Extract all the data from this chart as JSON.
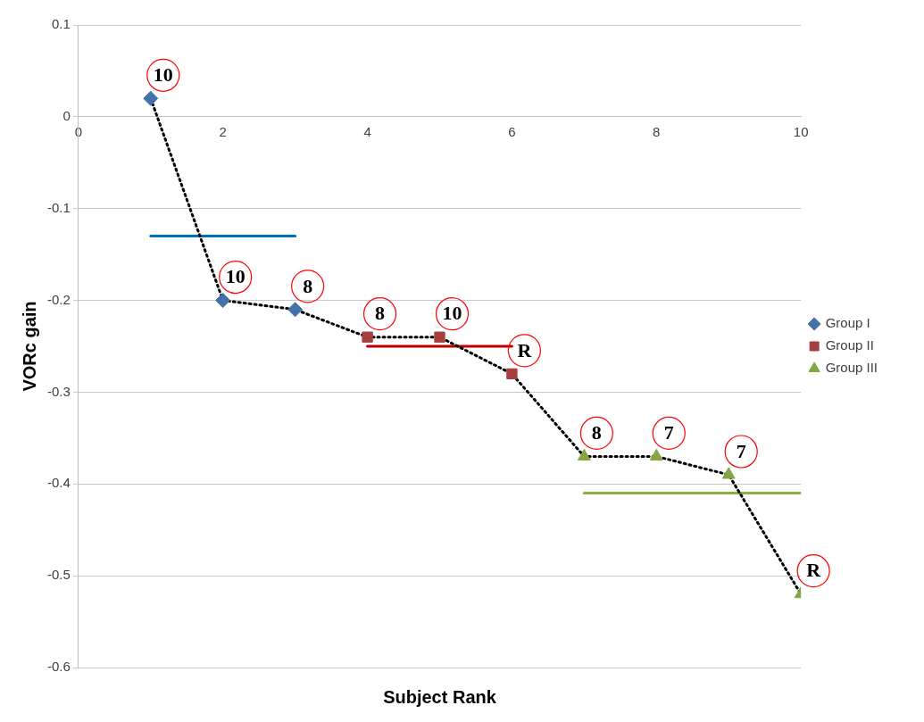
{
  "chart_data": {
    "type": "scatter",
    "xlabel": "Subject Rank",
    "ylabel": "VORc gain",
    "xlim": [
      0,
      10
    ],
    "xticks": [
      0,
      2,
      4,
      6,
      8,
      10
    ],
    "ylim": [
      -0.6,
      0.1
    ],
    "yticks": [
      0.1,
      0,
      -0.1,
      -0.2,
      -0.3,
      -0.4,
      -0.5,
      -0.6
    ],
    "grid": "y",
    "legend": "right",
    "series": [
      {
        "type": "line",
        "color": "#000000",
        "line_style": "dotted",
        "marker": "none",
        "x": [
          1,
          2,
          3,
          4,
          5,
          6,
          7,
          8,
          9,
          10
        ],
        "values": [
          0.02,
          -0.2,
          -0.21,
          -0.24,
          -0.24,
          -0.28,
          -0.37,
          -0.37,
          -0.39,
          -0.52
        ]
      },
      {
        "type": "line",
        "color": "#0070c0",
        "line_style": "solid",
        "marker": "none",
        "x": [
          1,
          3
        ],
        "values": [
          -0.13,
          -0.13
        ]
      },
      {
        "type": "line",
        "color": "#c00000",
        "line_style": "solid",
        "marker": "none",
        "x": [
          4,
          6
        ],
        "values": [
          -0.25,
          -0.25
        ]
      },
      {
        "type": "line",
        "color": "#8cb040",
        "line_style": "solid",
        "marker": "none",
        "x": [
          7,
          10
        ],
        "values": [
          -0.41,
          -0.41
        ]
      },
      {
        "name": "Group I",
        "color": "#4472a8",
        "marker": "diamond",
        "x": [
          1,
          2,
          3
        ],
        "values": [
          0.02,
          -0.2,
          -0.21
        ]
      },
      {
        "name": "Group II",
        "color": "#a5403e",
        "marker": "square",
        "x": [
          4,
          5,
          6
        ],
        "values": [
          -0.24,
          -0.24,
          -0.28
        ]
      },
      {
        "name": "Group III",
        "color": "#86a544",
        "marker": "triangle",
        "x": [
          7,
          8,
          9,
          10
        ],
        "values": [
          -0.37,
          -0.37,
          -0.39,
          -0.52
        ]
      }
    ],
    "annotations": [
      {
        "text": "10",
        "x": 1,
        "y": 0.02
      },
      {
        "text": "10",
        "x": 2,
        "y": -0.2
      },
      {
        "text": "8",
        "x": 3,
        "y": -0.21
      },
      {
        "text": "8",
        "x": 4,
        "y": -0.24
      },
      {
        "text": "10",
        "x": 5,
        "y": -0.24
      },
      {
        "text": "R",
        "x": 6,
        "y": -0.28
      },
      {
        "text": "8",
        "x": 7,
        "y": -0.37
      },
      {
        "text": "7",
        "x": 8,
        "y": -0.37
      },
      {
        "text": "7",
        "x": 9,
        "y": -0.39
      },
      {
        "text": "R",
        "x": 10,
        "y": -0.52
      }
    ]
  }
}
